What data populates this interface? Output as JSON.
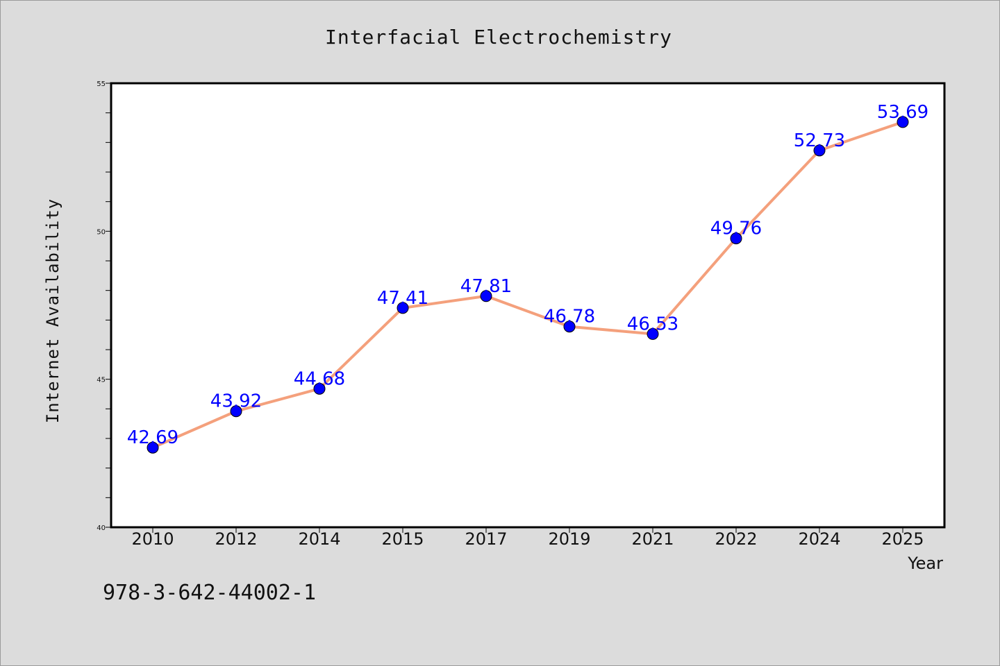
{
  "chart_data": {
    "type": "line",
    "title": "Interfacial Electrochemistry",
    "xlabel": "Year",
    "ylabel": "Internet Availability",
    "categories": [
      "2010",
      "2012",
      "2014",
      "2015",
      "2017",
      "2019",
      "2021",
      "2022",
      "2024",
      "2025"
    ],
    "series": [
      {
        "values": [
          42.69,
          43.92,
          44.68,
          47.41,
          47.81,
          46.78,
          46.53,
          49.76,
          52.73,
          53.69
        ],
        "line_color": "#f4a07c",
        "marker_color": "#0000ff"
      }
    ],
    "data_labels": [
      "42.69",
      "43.92",
      "44.68",
      "47.41",
      "47.81",
      "46.78",
      "46.53",
      "49.76",
      "52.73",
      "53.69"
    ],
    "ylim": [
      40,
      55
    ],
    "yticks": [
      40,
      45,
      50,
      55
    ],
    "grid": false,
    "legend": "none"
  },
  "footer_text": "978-3-642-44002-1"
}
